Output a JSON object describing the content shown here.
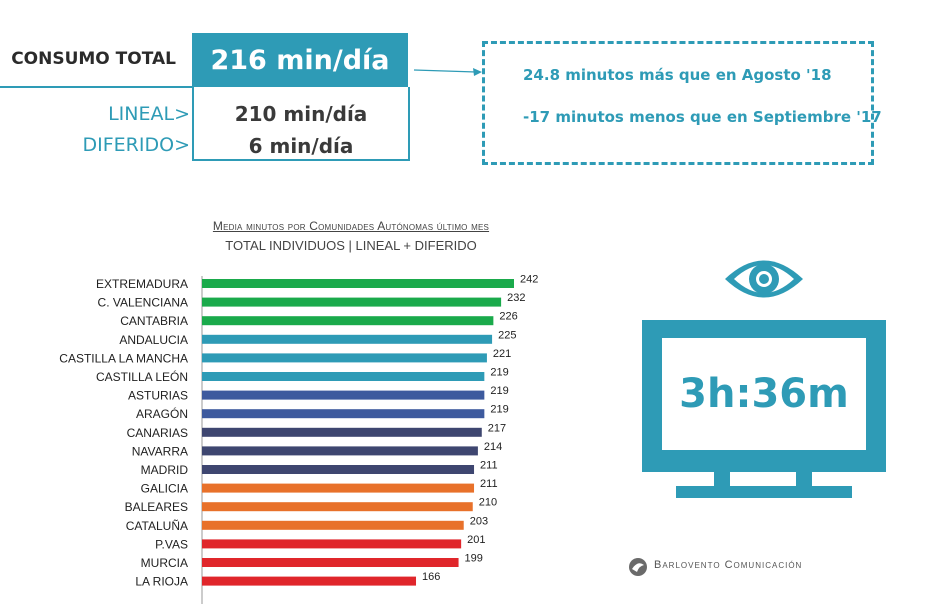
{
  "summary": {
    "consumo_label": "CONSUMO TOTAL",
    "total_value": "216 min/día",
    "lineal_label": "LINEAL>",
    "lineal_value": "210 min/día",
    "diferido_label": "DIFERIDO>",
    "diferido_value": "6 min/día"
  },
  "info": {
    "line1": "24.8 minutos más que en Agosto '18",
    "line2": "-17 minutos menos que en Septiembre '17"
  },
  "tv": {
    "time": "3h:36m"
  },
  "brand": {
    "name": "Barlovento Comunicación"
  },
  "colors": {
    "accent": "#2e9bb6",
    "green": "#1aaa4b",
    "teal": "#2e9bb6",
    "blue": "#3d5a9e",
    "navy": "#3e4670",
    "orange": "#e8712a",
    "red": "#e0262b"
  },
  "chart_data": {
    "type": "bar",
    "orientation": "horizontal",
    "title": "Media minutos por Comunidades Autónomas último mes",
    "subtitle": "TOTAL INDIVIDUOS   | LINEAL + DIFERIDO",
    "categories": [
      "EXTREMADURA",
      "C. VALENCIANA",
      "CANTABRIA",
      "ANDALUCIA",
      "CASTILLA LA MANCHA",
      "CASTILLA LEÓN",
      "ASTURIAS",
      "ARAGÓN",
      "CANARIAS",
      "NAVARRA",
      "MADRID",
      "GALICIA",
      "BALEARES",
      "CATALUÑA",
      "P.VAS",
      "MURCIA",
      "LA RIOJA"
    ],
    "values": [
      242,
      232,
      226,
      225,
      221,
      219,
      219,
      219,
      217,
      214,
      211,
      211,
      210,
      203,
      201,
      199,
      166
    ],
    "bar_colors": [
      "#1aaa4b",
      "#1aaa4b",
      "#1aaa4b",
      "#2e9bb6",
      "#2e9bb6",
      "#2e9bb6",
      "#3d5a9e",
      "#3d5a9e",
      "#3e4670",
      "#3e4670",
      "#3e4670",
      "#e8712a",
      "#e8712a",
      "#e8712a",
      "#e0262b",
      "#e0262b",
      "#e0262b"
    ],
    "xlim": [
      0,
      242
    ],
    "grid": false,
    "legend": "none"
  }
}
